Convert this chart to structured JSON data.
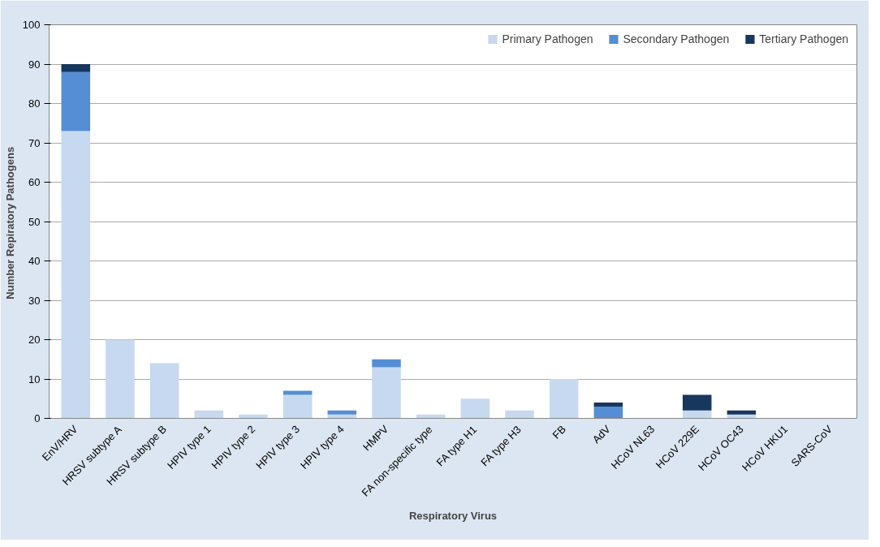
{
  "chart_data": {
    "type": "bar",
    "stacked": true,
    "xlabel": "Respiratory Virus",
    "ylabel": "Number  Repiratory Pathogens",
    "categories": [
      "EnV/HRV",
      "HRSV subtype A",
      "HRSV subtype B",
      "HPIV type 1",
      "HPIV type 2",
      "HPIV type 3",
      "HPIV type 4",
      "HMPV",
      "FA non-specific type",
      "FA type H1",
      "FA type H3",
      "FB",
      "AdV",
      "HCoV NL63",
      "HCoV 229E",
      "HCoV OC43",
      "HCoV HKU1",
      "SARS-CoV"
    ],
    "series": [
      {
        "name": "Primary Pathogen",
        "color": "#c6d9f0",
        "values": [
          73,
          20,
          14,
          2,
          1,
          6,
          1,
          13,
          1,
          5,
          2,
          10,
          0,
          0,
          2,
          1,
          0,
          0
        ]
      },
      {
        "name": "Secondary Pathogen",
        "color": "#558ed5",
        "values": [
          15,
          0,
          0,
          0,
          0,
          1,
          1,
          2,
          0,
          0,
          0,
          0,
          3,
          0,
          0,
          0,
          0,
          0
        ]
      },
      {
        "name": "Tertiary Pathogen",
        "color": "#17375e",
        "values": [
          2,
          0,
          0,
          0,
          0,
          0,
          0,
          0,
          0,
          0,
          0,
          0,
          1,
          0,
          4,
          1,
          0,
          0
        ]
      }
    ],
    "ylim": [
      0,
      100
    ],
    "yticks": [
      0,
      10,
      20,
      30,
      40,
      50,
      60,
      70,
      80,
      90,
      100
    ],
    "grid": "y",
    "legend": "top right"
  }
}
